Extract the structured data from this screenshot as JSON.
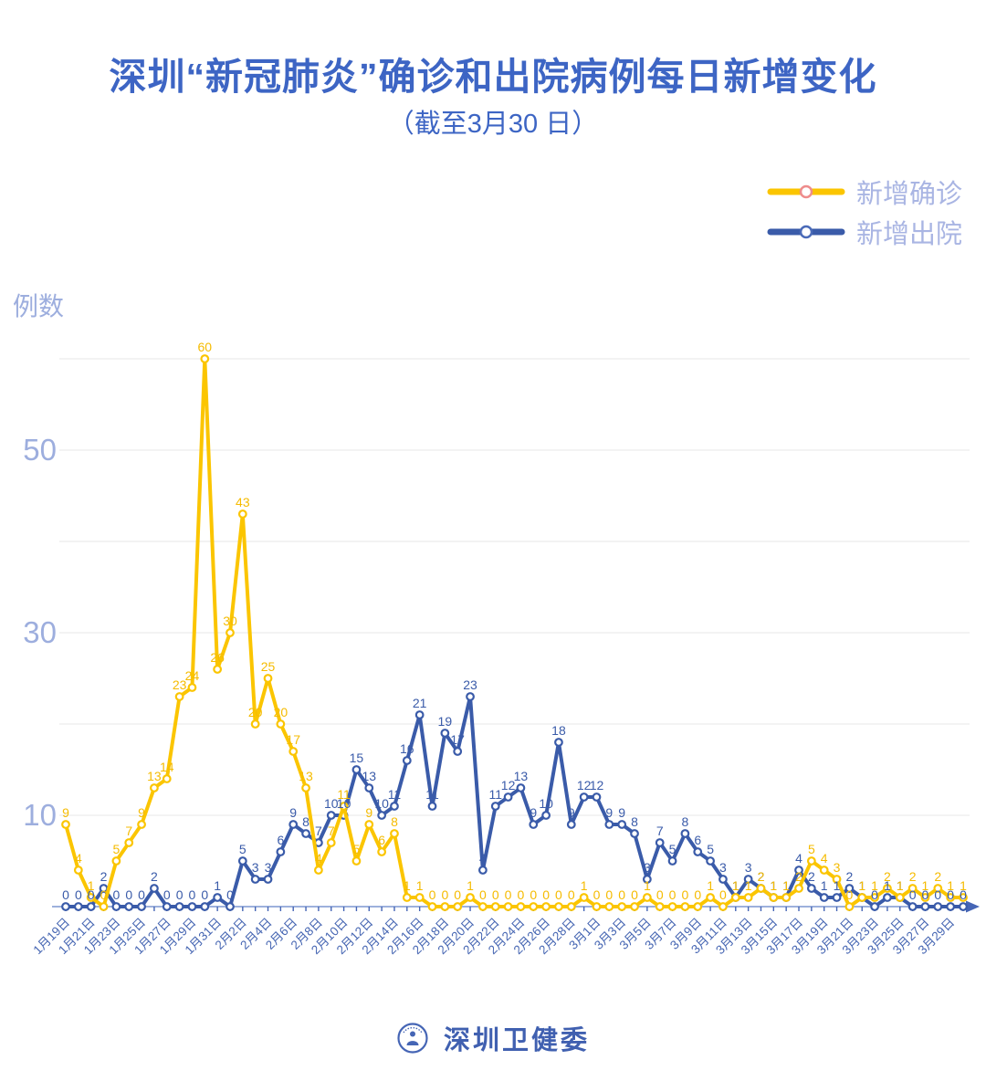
{
  "title": "深圳“新冠肺炎”确诊和出院病例每日新增变化",
  "subtitle": "（截至3月30 日）",
  "unit_label": "例数",
  "legend": [
    {
      "label": "新增确诊",
      "line_color": "#fbc500",
      "marker_stroke": "#ee8c8c"
    },
    {
      "label": "新增出院",
      "line_color": "#3a5ba9",
      "marker_stroke": "#4a6ab8"
    }
  ],
  "footer": {
    "org": "深圳卫健委"
  },
  "colors": {
    "confirmed": "#fbc500",
    "confirmed_label": "#f5bb00",
    "discharged": "#3a5ba9",
    "grid": "#ececec",
    "axis_line": "#7d97d0",
    "axis_arrow": "#4565b5",
    "y_tick_text": "#9daede",
    "x_tick_text": "#4565b2"
  },
  "chart_data": {
    "type": "line",
    "title": "深圳“新冠肺炎”确诊和出院病例每日新增变化",
    "subtitle": "（截至3月30 日）",
    "ylabel": "例数",
    "ylim": [
      0,
      62
    ],
    "y_ticks_labeled": [
      10,
      30,
      50
    ],
    "gridlines": [
      10,
      20,
      30,
      40,
      50,
      60
    ],
    "legend_position": "top-right",
    "x_start": "1月19日",
    "x_end": "3月30日",
    "x_tick_labels": [
      "1月19日",
      "1月21日",
      "1月23日",
      "1月25日",
      "1月27日",
      "1月29日",
      "1月31日",
      "2月2日",
      "2月4日",
      "2月6日",
      "2月8日",
      "2月10日",
      "2月12日",
      "2月14日",
      "2月16日",
      "2月18日",
      "2月20日",
      "2月22日",
      "2月24日",
      "2月26日",
      "2月28日",
      "3月1日",
      "3月3日",
      "3月5日",
      "3月7日",
      "3月9日",
      "3月11日",
      "3月13日",
      "3月15日",
      "3月17日",
      "3月19日",
      "3月21日",
      "3月23日",
      "3月25日",
      "3月27日",
      "3月29日"
    ],
    "series": [
      {
        "name": "新增确诊",
        "color": "#fbc500",
        "values": [
          9,
          4,
          1,
          0,
          5,
          7,
          9,
          13,
          14,
          23,
          24,
          60,
          26,
          30,
          43,
          20,
          25,
          20,
          17,
          13,
          4,
          7,
          11,
          5,
          9,
          6,
          8,
          1,
          1,
          0,
          0,
          0,
          1,
          0,
          0,
          0,
          0,
          0,
          0,
          0,
          0,
          1,
          0,
          0,
          0,
          0,
          1,
          0,
          0,
          0,
          0,
          1,
          0,
          1,
          1,
          2,
          1,
          1,
          2,
          5,
          4,
          3,
          0,
          1,
          1,
          2,
          1,
          2,
          1,
          2,
          1,
          1
        ]
      },
      {
        "name": "新增出院",
        "color": "#3a5ba9",
        "values": [
          0,
          0,
          0,
          2,
          0,
          0,
          0,
          2,
          0,
          0,
          0,
          0,
          1,
          0,
          5,
          3,
          3,
          6,
          9,
          8,
          7,
          10,
          10,
          15,
          13,
          10,
          11,
          16,
          21,
          11,
          19,
          17,
          23,
          4,
          11,
          12,
          13,
          9,
          10,
          18,
          9,
          12,
          12,
          9,
          9,
          8,
          3,
          7,
          5,
          8,
          6,
          5,
          3,
          1,
          3,
          2,
          1,
          1,
          4,
          2,
          1,
          1,
          2,
          1,
          0,
          1,
          1,
          0,
          0,
          0,
          0,
          0
        ]
      }
    ]
  }
}
